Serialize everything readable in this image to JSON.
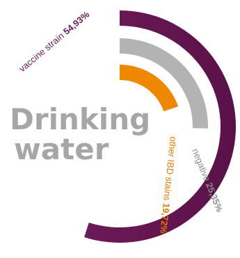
{
  "chart_data": {
    "type": "radial_bar",
    "title_lines": [
      "Drinking",
      "water"
    ],
    "max_value": 100,
    "series": [
      {
        "label": "vaccine strain",
        "value_label": "54,93%",
        "value": 54.93,
        "color": "#6d1a57",
        "color_end": "#5a1148"
      },
      {
        "label": "negative",
        "value_label": "25,35%",
        "value": 25.35,
        "color": "#b3b3b3"
      },
      {
        "label": "other IBD stains",
        "value_label": "19,72%",
        "value": 19.72,
        "color": "#ef8800"
      }
    ]
  },
  "colors": {
    "title": "#a6a6a6",
    "vaccine_text": "#6d1a57",
    "negative_text": "#8c8c8c",
    "other_text": "#e07b00"
  }
}
